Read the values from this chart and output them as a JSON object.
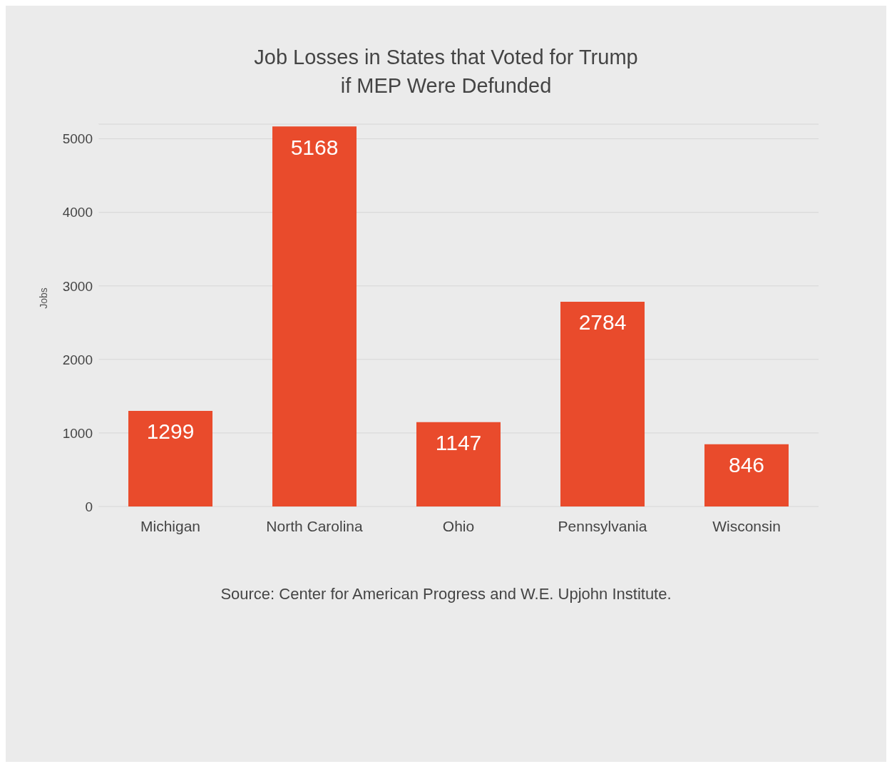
{
  "chart_data": {
    "type": "bar",
    "title": "Job Losses in States that Voted for Trump\nif MEP Were Defunded",
    "ylabel": "Jobs",
    "categories": [
      "Michigan",
      "North Carolina",
      "Ohio",
      "Pennsylvania",
      "Wisconsin"
    ],
    "values": [
      1299,
      5168,
      1147,
      2784,
      846
    ],
    "color": "#e94b2c",
    "ylim": [
      0,
      5200
    ],
    "yticks": [
      0,
      1000,
      2000,
      3000,
      4000,
      5000
    ],
    "grid": "y",
    "data_labels": true,
    "annotations": [
      "Source: Center for American Progress and W.E. Upjohn Institute."
    ]
  }
}
